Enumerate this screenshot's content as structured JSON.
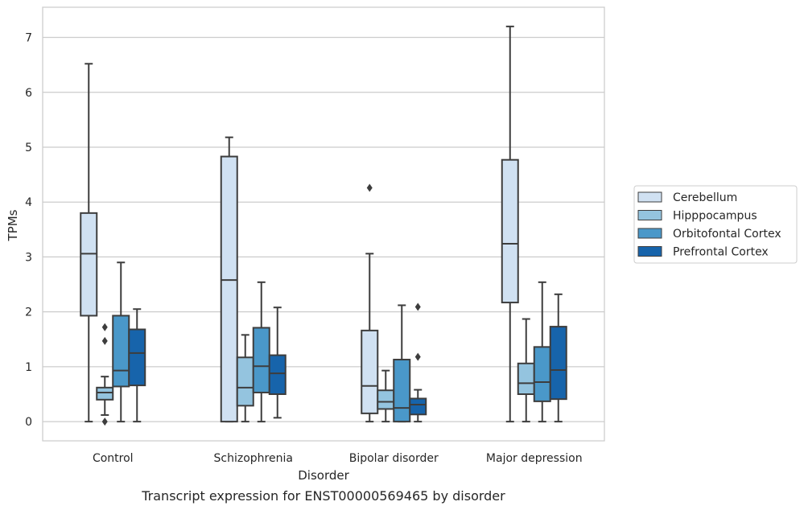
{
  "chart_data": {
    "type": "box",
    "title": "Transcript expression for ENST00000569465 by disorder",
    "xlabel": "Disorder",
    "ylabel": "TPMs",
    "categories": [
      "Control",
      "Schizophrenia",
      "Bipolar disorder",
      "Major depression"
    ],
    "ylim": [
      -0.35,
      7.55
    ],
    "yticks": [
      0,
      1,
      2,
      3,
      4,
      5,
      6,
      7
    ],
    "grid": true,
    "legend_position": "right",
    "series": [
      {
        "name": "Cerebellum",
        "color": "#d0e1f2",
        "boxes": [
          {
            "whislo": 0.0,
            "q1": 1.93,
            "med": 3.06,
            "q3": 3.8,
            "whishi": 6.52,
            "fliers": []
          },
          {
            "whislo": 0.0,
            "q1": 0.0,
            "med": 2.58,
            "q3": 4.83,
            "whishi": 5.18,
            "fliers": []
          },
          {
            "whislo": 0.0,
            "q1": 0.15,
            "med": 0.65,
            "q3": 1.66,
            "whishi": 3.06,
            "fliers": [
              4.26
            ]
          },
          {
            "whislo": 0.0,
            "q1": 2.17,
            "med": 3.24,
            "q3": 4.77,
            "whishi": 7.2,
            "fliers": []
          }
        ]
      },
      {
        "name": "Hipppocampus",
        "color": "#94c4df",
        "boxes": [
          {
            "whislo": 0.12,
            "q1": 0.4,
            "med": 0.53,
            "q3": 0.62,
            "whishi": 0.82,
            "fliers": [
              1.72,
              1.47,
              0.0
            ]
          },
          {
            "whislo": 0.0,
            "q1": 0.29,
            "med": 0.62,
            "q3": 1.17,
            "whishi": 1.58,
            "fliers": []
          },
          {
            "whislo": 0.0,
            "q1": 0.23,
            "med": 0.36,
            "q3": 0.57,
            "whishi": 0.93,
            "fliers": []
          },
          {
            "whislo": 0.0,
            "q1": 0.5,
            "med": 0.7,
            "q3": 1.06,
            "whishi": 1.87,
            "fliers": []
          }
        ]
      },
      {
        "name": "Orbitofontal Cortex",
        "color": "#4a98c9",
        "boxes": [
          {
            "whislo": 0.0,
            "q1": 0.64,
            "med": 0.93,
            "q3": 1.93,
            "whishi": 2.9,
            "fliers": []
          },
          {
            "whislo": 0.0,
            "q1": 0.53,
            "med": 1.01,
            "q3": 1.71,
            "whishi": 2.54,
            "fliers": []
          },
          {
            "whislo": 0.0,
            "q1": 0.0,
            "med": 0.25,
            "q3": 1.13,
            "whishi": 2.12,
            "fliers": []
          },
          {
            "whislo": 0.0,
            "q1": 0.37,
            "med": 0.72,
            "q3": 1.36,
            "whishi": 2.54,
            "fliers": []
          }
        ]
      },
      {
        "name": "Prefrontal Cortex",
        "color": "#1764ab",
        "boxes": [
          {
            "whislo": 0.0,
            "q1": 0.66,
            "med": 1.25,
            "q3": 1.68,
            "whishi": 2.05,
            "fliers": []
          },
          {
            "whislo": 0.07,
            "q1": 0.5,
            "med": 0.88,
            "q3": 1.21,
            "whishi": 2.08,
            "fliers": []
          },
          {
            "whislo": 0.0,
            "q1": 0.13,
            "med": 0.31,
            "q3": 0.42,
            "whishi": 0.58,
            "fliers": [
              2.09,
              1.18
            ]
          },
          {
            "whislo": 0.0,
            "q1": 0.41,
            "med": 0.94,
            "q3": 1.73,
            "whishi": 2.32,
            "fliers": []
          }
        ]
      }
    ]
  }
}
